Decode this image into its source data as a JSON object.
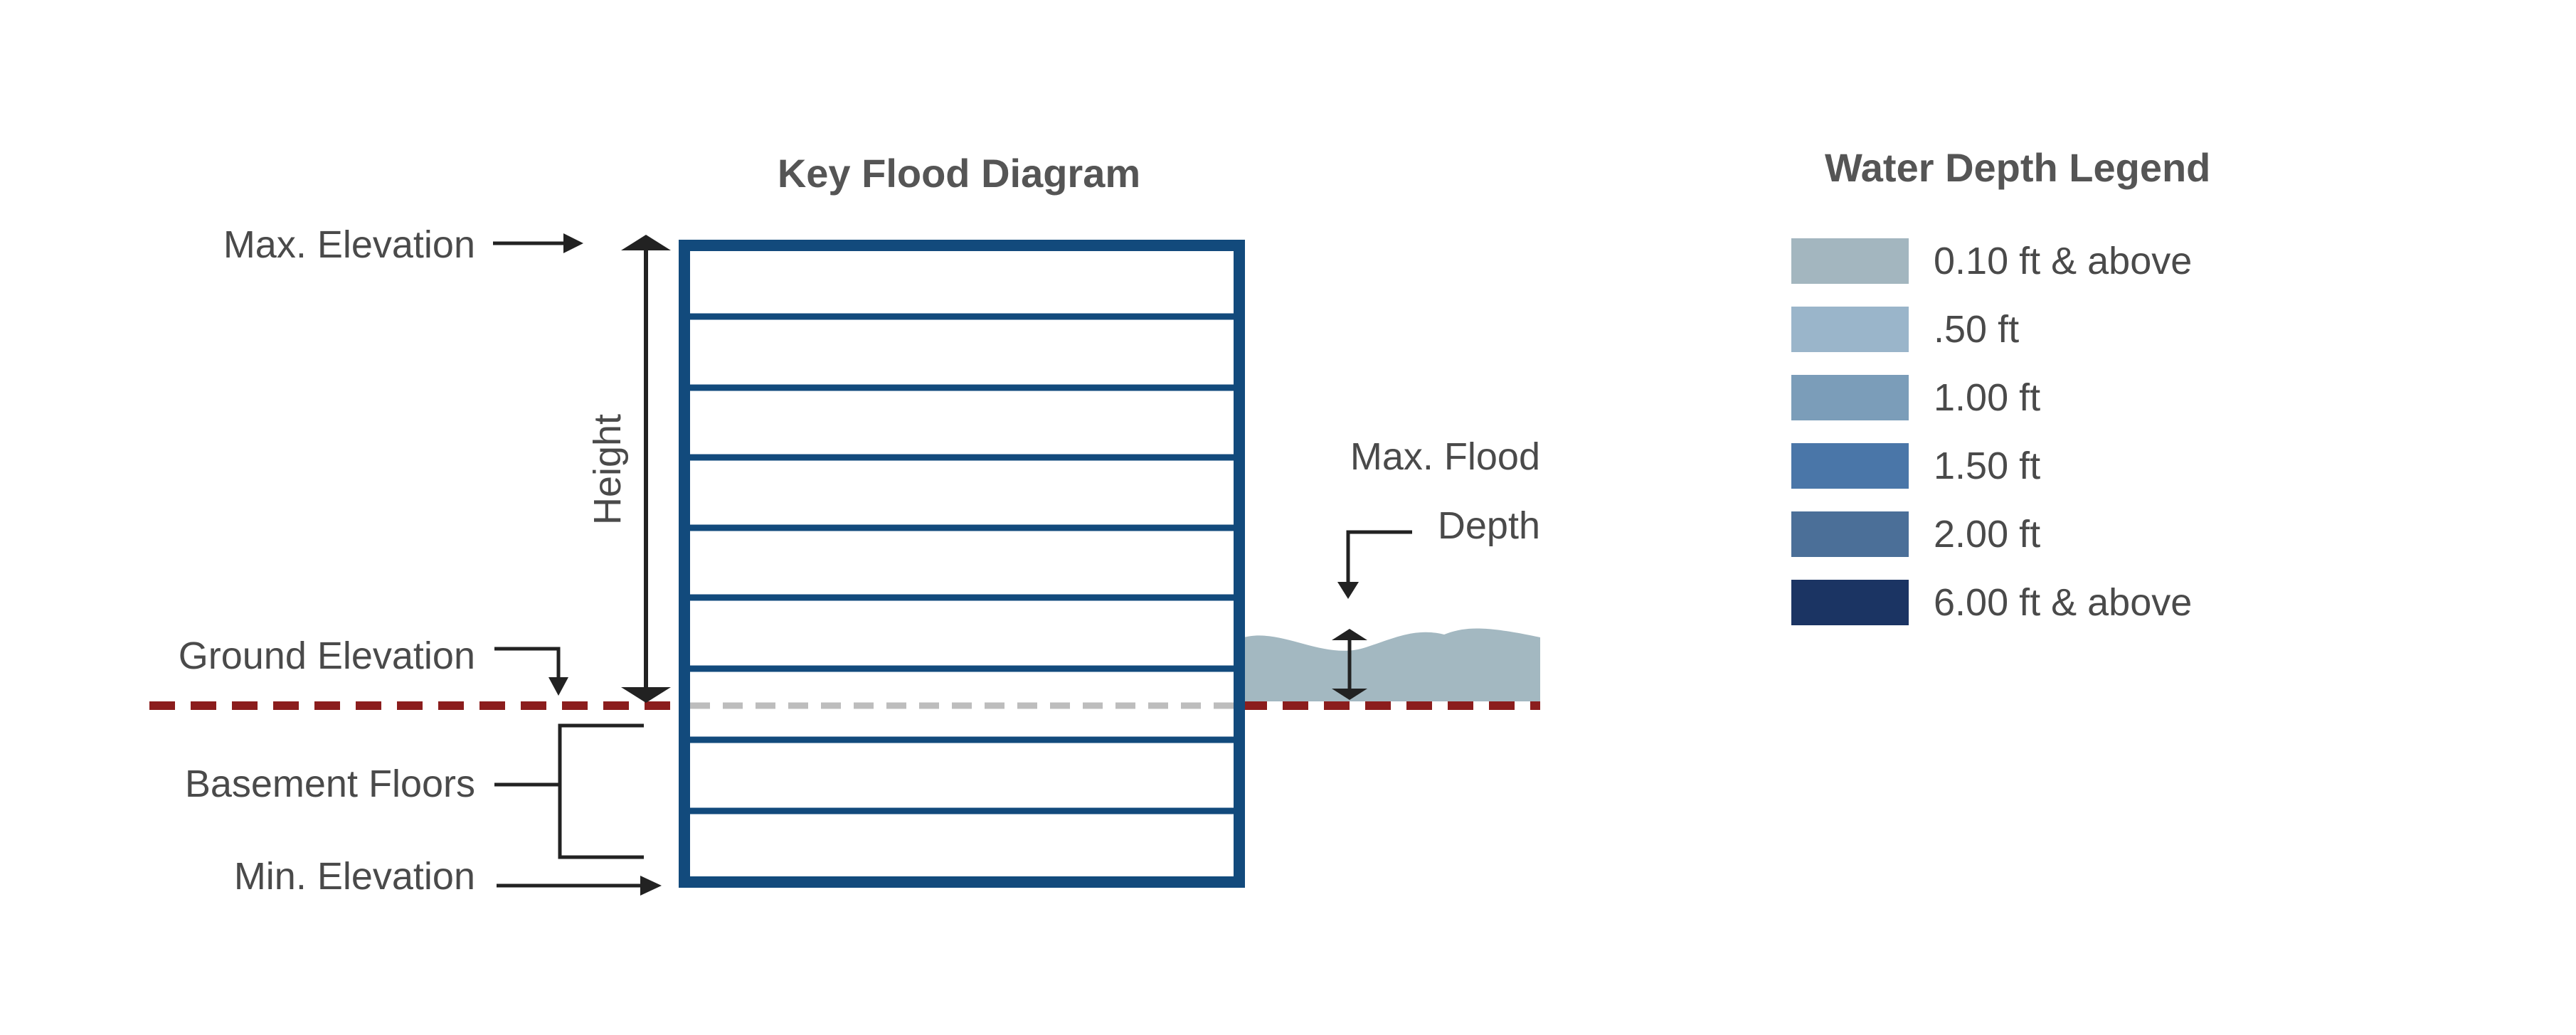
{
  "diagram": {
    "title": "Key Flood Diagram",
    "labels": {
      "max_elevation": "Max. Elevation",
      "height": "Height",
      "ground_elevation": "Ground Elevation",
      "basement_floors": "Basement Floors",
      "min_elevation": "Min. Elevation",
      "max_flood_line1": "Max. Flood",
      "max_flood_line2": "Depth"
    },
    "colors": {
      "building": "#124a7c",
      "ground_line": "#8b1d1d",
      "ground_line_inside": "#bdbdbd",
      "water": "#a3b8c1",
      "arrow": "#222222"
    }
  },
  "legend": {
    "title": "Water Depth Legend",
    "items": [
      {
        "label": "0.10 ft & above",
        "color": "#a3b6bf"
      },
      {
        "label": ".50 ft",
        "color": "#9ab5ca"
      },
      {
        "label": "1.00 ft",
        "color": "#7b9db9"
      },
      {
        "label": "1.50 ft",
        "color": "#4a76a8"
      },
      {
        "label": "2.00 ft",
        "color": "#4b6f98"
      },
      {
        "label": "6.00 ft & above",
        "color": "#1b3463"
      }
    ]
  }
}
